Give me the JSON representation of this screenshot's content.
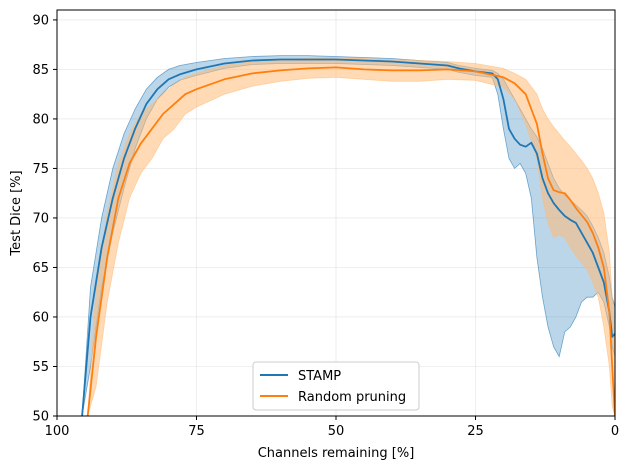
{
  "chart_data": {
    "type": "line",
    "title": "",
    "xlabel": "Channels remaining [%]",
    "ylabel": "Test Dice [%]",
    "xlim": [
      100,
      0
    ],
    "ylim": [
      50,
      91
    ],
    "x_ticks": [
      100,
      75,
      50,
      25,
      0
    ],
    "y_ticks": [
      50,
      55,
      60,
      65,
      70,
      75,
      80,
      85,
      90
    ],
    "grid": true,
    "legend_position": "bottom-center",
    "series": [
      {
        "name": "STAMP",
        "color": "#1f77b4",
        "band_color": "#1f77b4",
        "x": [
          95.5,
          94,
          92,
          90,
          88,
          86,
          84,
          82,
          80,
          78,
          75,
          70,
          65,
          60,
          55,
          50,
          45,
          40,
          35,
          30,
          28,
          25,
          22,
          21,
          20,
          19,
          18,
          17,
          16,
          15,
          14,
          13,
          12,
          11,
          10,
          9,
          8,
          7,
          6,
          5,
          4,
          3,
          2,
          1,
          0.5,
          0
        ],
        "y": [
          50,
          60,
          67,
          72,
          76,
          79,
          81.5,
          83,
          84,
          84.5,
          85,
          85.6,
          85.9,
          86,
          86,
          86,
          85.9,
          85.8,
          85.6,
          85.4,
          85.1,
          84.8,
          84.6,
          84,
          82,
          79,
          78,
          77.4,
          77.2,
          77.6,
          76.5,
          74,
          72.5,
          71.5,
          70.8,
          70.2,
          69.8,
          69.5,
          68.5,
          67.5,
          66.5,
          65,
          63.5,
          60.5,
          58,
          58.3
        ],
        "upper": [
          50,
          63,
          70,
          75,
          78.5,
          81,
          83,
          84.2,
          85,
          85.4,
          85.7,
          86.1,
          86.3,
          86.4,
          86.4,
          86.3,
          86.2,
          86.1,
          85.9,
          85.7,
          85.4,
          85.1,
          84.9,
          84.6,
          84,
          83,
          82,
          81,
          80,
          79,
          78.2,
          77,
          75.5,
          74,
          73,
          72.3,
          71.8,
          71.3,
          70.8,
          70.2,
          69.2,
          68,
          66.5,
          64,
          62,
          61
        ],
        "lower": [
          50,
          55,
          63,
          68.5,
          73,
          77,
          80,
          82,
          83.2,
          83.9,
          84.4,
          85.1,
          85.5,
          85.6,
          85.6,
          85.6,
          85.5,
          85.4,
          85.2,
          85,
          84.7,
          84.4,
          84.2,
          82.5,
          79,
          76,
          75,
          75.5,
          74.5,
          72,
          66,
          62,
          59,
          57,
          56,
          58.5,
          59,
          60,
          61.5,
          62,
          62,
          62.5,
          61.5,
          59,
          57,
          56
        ]
      },
      {
        "name": "Random pruning",
        "color": "#ff7f0e",
        "band_color": "#ffbb78",
        "x": [
          94.5,
          93,
          91,
          89,
          87,
          85,
          83,
          81,
          79,
          77,
          75,
          70,
          65,
          60,
          55,
          50,
          45,
          40,
          35,
          30,
          25,
          20,
          18,
          16,
          14,
          13,
          12,
          11,
          10,
          9,
          8,
          7,
          6,
          5,
          4,
          3,
          2,
          1,
          0.5,
          0
        ],
        "y": [
          50,
          58,
          66,
          72,
          75.5,
          77.5,
          79,
          80.5,
          81.5,
          82.5,
          83,
          84,
          84.6,
          84.9,
          85.1,
          85.2,
          85,
          84.9,
          84.9,
          85,
          84.8,
          84.2,
          83.6,
          82.5,
          79.5,
          76.5,
          74,
          72.8,
          72.6,
          72.5,
          71.8,
          71,
          70.3,
          69.6,
          68.5,
          67,
          65,
          60.5,
          55,
          50
        ],
        "upper": [
          50,
          63,
          70.5,
          75.5,
          78.5,
          80.5,
          81.5,
          82.5,
          83.5,
          84.2,
          84.6,
          85.4,
          85.8,
          86,
          86.1,
          86.2,
          86.1,
          86,
          85.9,
          85.8,
          85.6,
          85.1,
          84.6,
          84,
          82.5,
          81,
          80,
          79.2,
          78.5,
          77.8,
          77.2,
          76.5,
          75.8,
          75,
          74,
          72.5,
          70.5,
          66.5,
          62,
          56
        ],
        "lower": [
          50,
          53,
          61.5,
          67.5,
          72,
          74.5,
          76,
          78,
          79,
          80.5,
          81.2,
          82.5,
          83.3,
          83.8,
          84.1,
          84.2,
          84,
          83.8,
          83.8,
          84,
          83.9,
          83.2,
          82,
          79.5,
          76,
          72,
          69.5,
          68,
          68.3,
          68,
          67,
          66.2,
          65.5,
          64.8,
          63.5,
          62,
          59,
          55,
          51,
          50
        ]
      }
    ]
  }
}
